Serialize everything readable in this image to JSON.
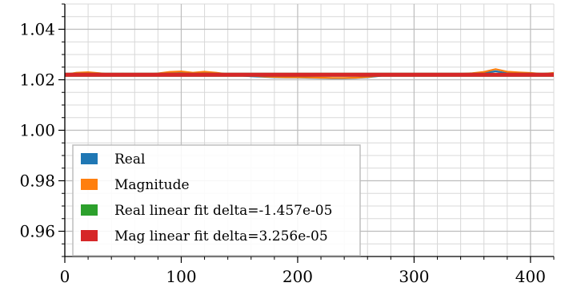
{
  "chart_data": {
    "type": "line",
    "xlim": [
      0,
      420
    ],
    "ylim": [
      0.95,
      1.05
    ],
    "x_ticks": [
      0,
      100,
      200,
      300,
      400
    ],
    "x_tick_labels": [
      "0",
      "100",
      "200",
      "300",
      "400"
    ],
    "y_ticks": [
      0.96,
      0.98,
      1.0,
      1.02,
      1.04
    ],
    "y_tick_labels": [
      "0.96",
      "0.98",
      "1.00",
      "1.02",
      "1.04"
    ],
    "x_minor_step": 20,
    "y_minor_step": 0.005,
    "grid": true,
    "legend_position": "lower-left",
    "colors": {
      "real": "#1f77b4",
      "magnitude": "#ff7f0e",
      "real_fit": "#2ca02c",
      "mag_fit": "#d62728"
    },
    "series": [
      {
        "name": "Real",
        "color": "#1f77b4",
        "x": [
          0,
          10,
          20,
          30,
          40,
          50,
          60,
          70,
          80,
          90,
          100,
          110,
          120,
          130,
          140,
          150,
          160,
          170,
          180,
          190,
          200,
          210,
          220,
          230,
          240,
          250,
          260,
          270,
          280,
          290,
          300,
          310,
          320,
          330,
          340,
          350,
          360,
          370,
          380,
          390,
          400,
          410,
          420
        ],
        "y": [
          1.0218,
          1.0223,
          1.0226,
          1.0224,
          1.022,
          1.0222,
          1.0216,
          1.0218,
          1.0222,
          1.0226,
          1.0228,
          1.0225,
          1.0227,
          1.0224,
          1.0219,
          1.0217,
          1.0214,
          1.0212,
          1.021,
          1.0209,
          1.0209,
          1.0208,
          1.0207,
          1.0206,
          1.0206,
          1.0207,
          1.021,
          1.0215,
          1.022,
          1.0222,
          1.0221,
          1.0221,
          1.0222,
          1.0221,
          1.0222,
          1.0223,
          1.0226,
          1.0234,
          1.0226,
          1.0225,
          1.0224,
          1.0221,
          1.0224
        ]
      },
      {
        "name": "Magnitude",
        "color": "#ff7f0e",
        "x": [
          0,
          10,
          20,
          30,
          40,
          50,
          60,
          70,
          80,
          90,
          100,
          110,
          120,
          130,
          140,
          150,
          160,
          170,
          180,
          190,
          200,
          210,
          220,
          230,
          240,
          250,
          260,
          270,
          280,
          290,
          300,
          310,
          320,
          330,
          340,
          350,
          360,
          370,
          380,
          390,
          400,
          410,
          420
        ],
        "y": [
          1.022,
          1.0228,
          1.023,
          1.0226,
          1.0221,
          1.0224,
          1.0219,
          1.0221,
          1.0225,
          1.0231,
          1.0233,
          1.0228,
          1.0232,
          1.0228,
          1.0222,
          1.0219,
          1.0216,
          1.0213,
          1.0211,
          1.021,
          1.021,
          1.0209,
          1.0208,
          1.0207,
          1.0207,
          1.0208,
          1.0211,
          1.0216,
          1.0221,
          1.0223,
          1.0222,
          1.0222,
          1.0223,
          1.0222,
          1.0223,
          1.0226,
          1.0231,
          1.0242,
          1.0232,
          1.0229,
          1.0227,
          1.0223,
          1.0227
        ]
      },
      {
        "name": "Real linear fit delta=-1.457e-05",
        "color": "#2ca02c",
        "x": [
          0,
          420
        ],
        "y": [
          1.022,
          1.022
        ]
      },
      {
        "name": "Mag linear fit delta=3.256e-05",
        "color": "#d62728",
        "x": [
          0,
          420
        ],
        "y": [
          1.022,
          1.022
        ]
      }
    ],
    "legend": [
      {
        "label": "Real",
        "color": "#1f77b4"
      },
      {
        "label": "Magnitude",
        "color": "#ff7f0e"
      },
      {
        "label": "Real linear fit delta=-1.457e-05",
        "color": "#2ca02c"
      },
      {
        "label": "Mag linear fit delta=3.256e-05",
        "color": "#d62728"
      }
    ]
  }
}
